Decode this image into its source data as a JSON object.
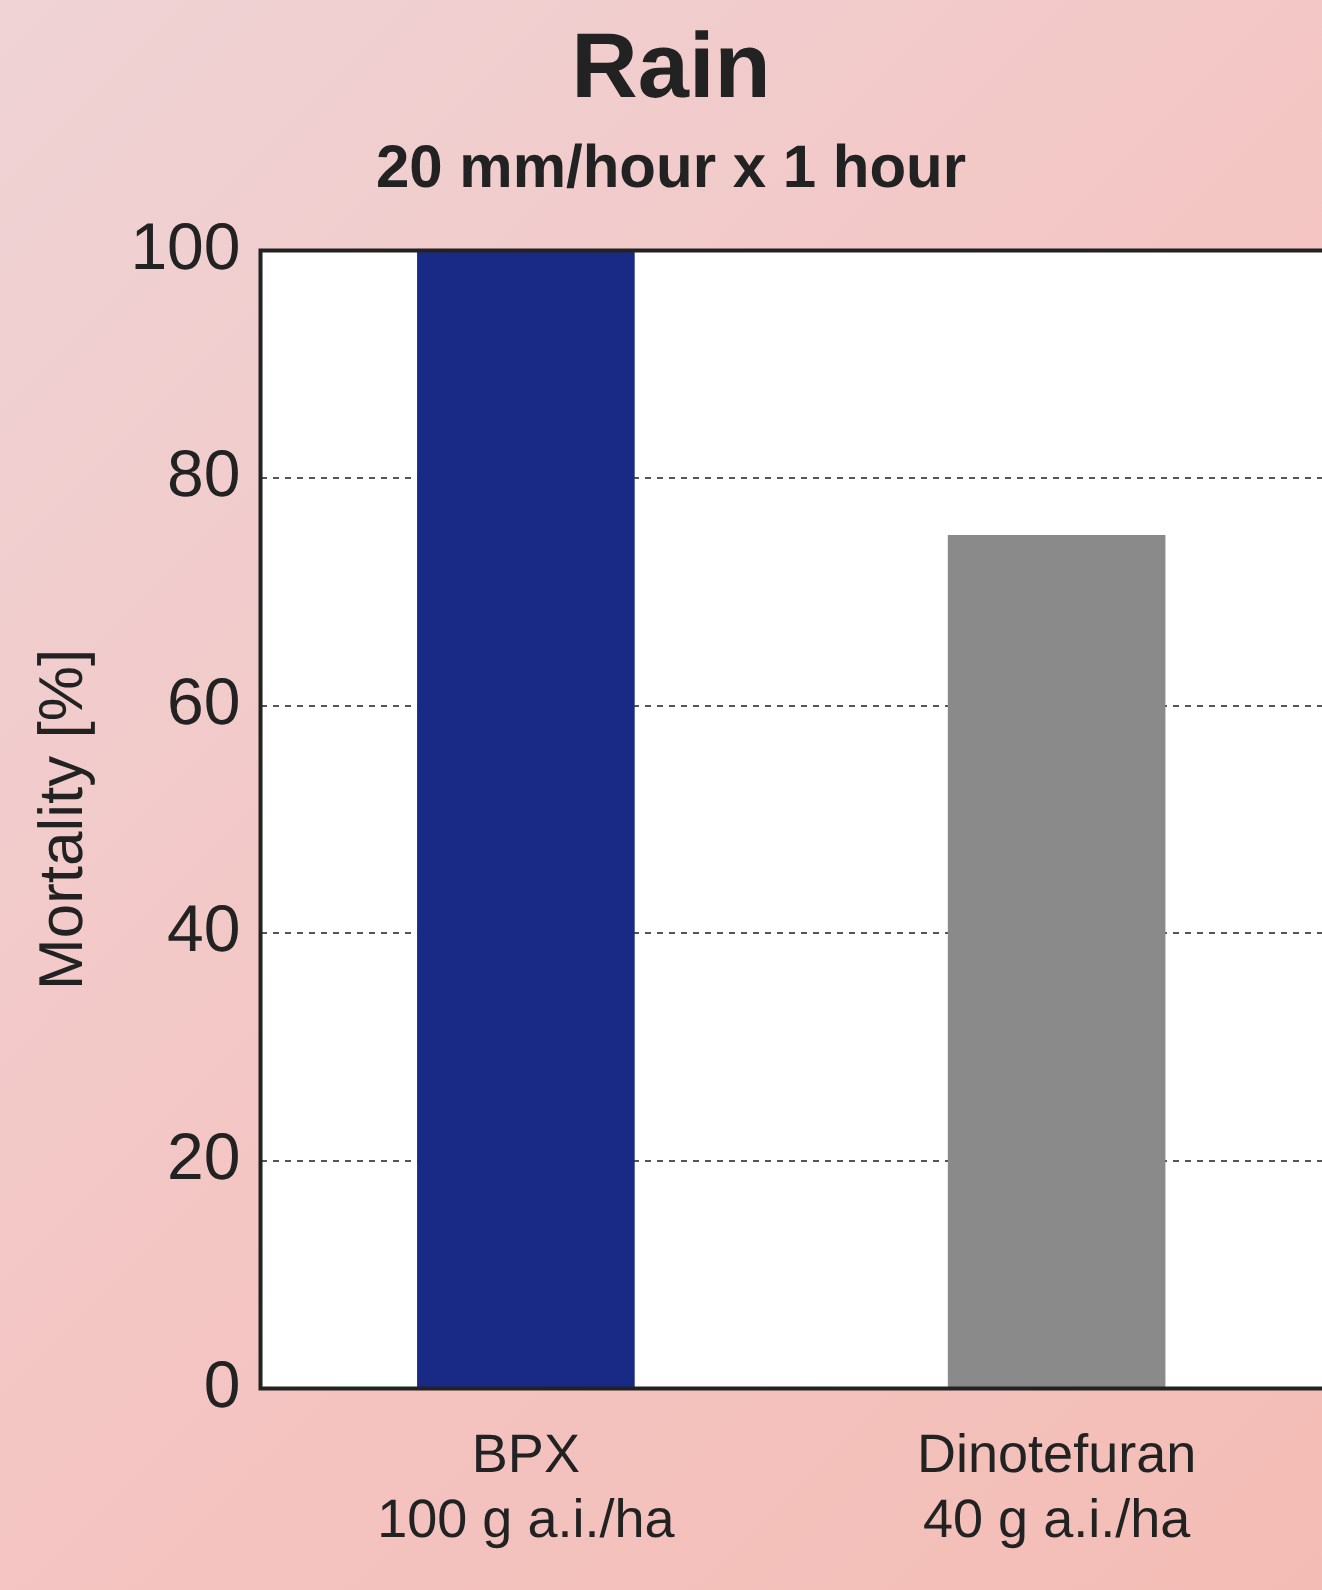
{
  "chart_data": {
    "type": "bar",
    "title": "Rain",
    "subtitle": "20 mm/hour x 1 hour",
    "ylabel": "Mortality [%]",
    "categories": [
      "BPX\n100 g a.i./ha",
      "Dinotefuran\n40 g a.i./ha"
    ],
    "values": [
      100,
      75
    ],
    "colors": [
      "#182a86",
      "#8a8a8a"
    ],
    "ylim": [
      0,
      100
    ],
    "yticks": [
      0,
      20,
      40,
      60,
      80,
      100
    ],
    "grid": "y",
    "legend": false
  }
}
